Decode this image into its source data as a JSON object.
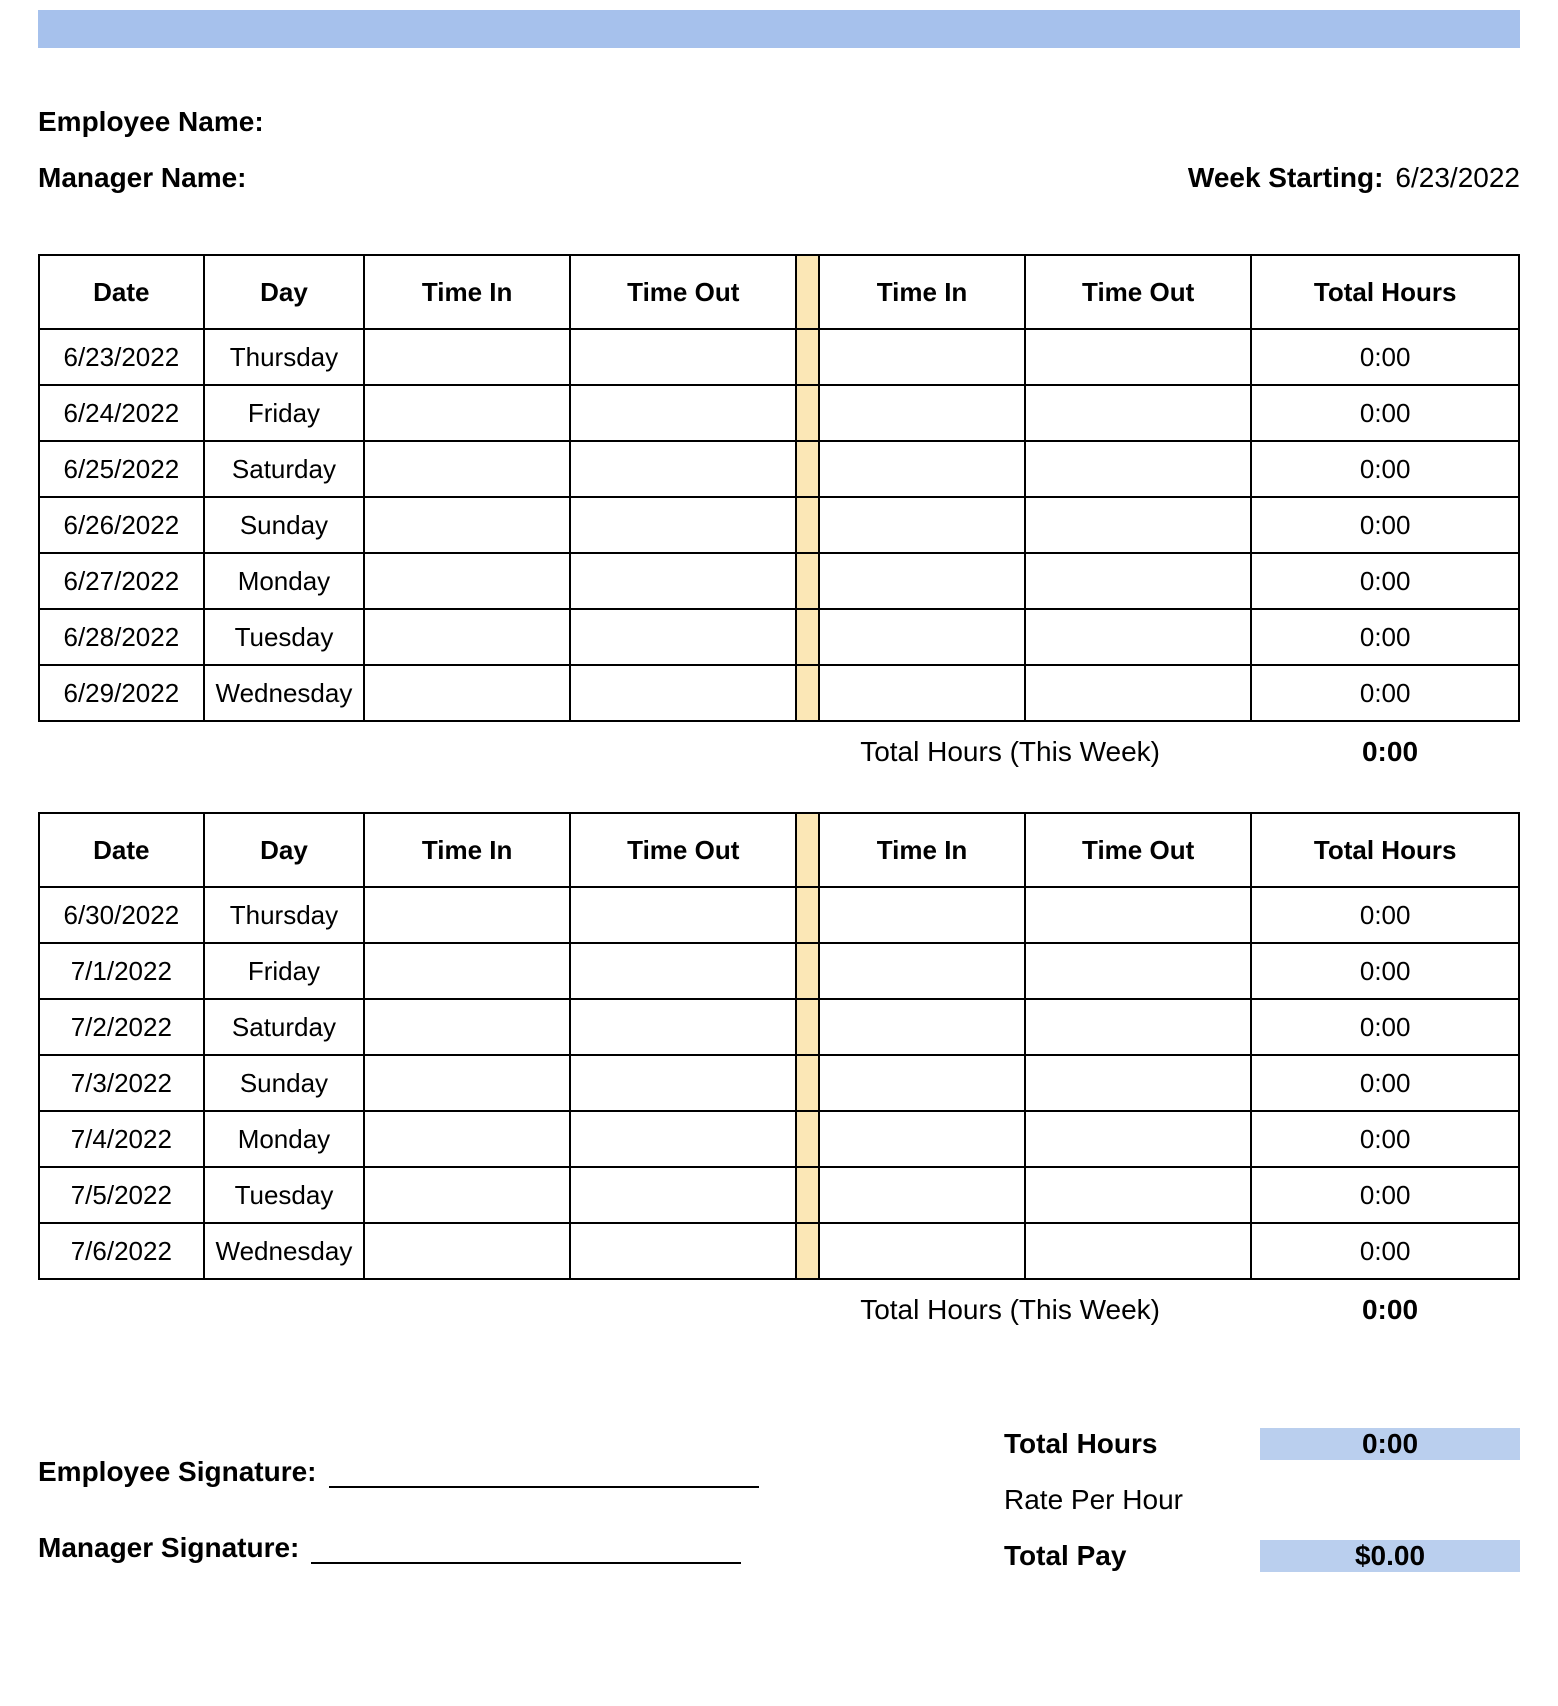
{
  "colors": {
    "header_bar": "#a6c1ec",
    "gap_fill": "#fbe7b6",
    "summary_highlight": "#bacfee",
    "summary_alt": "#fadfbd",
    "border": "#000000",
    "text": "#000000",
    "background": "#ffffff"
  },
  "header": {
    "employee_name_label": "Employee Name:",
    "manager_name_label": "Manager Name:",
    "week_starting_label": "Week Starting:",
    "week_starting_value": "6/23/2022"
  },
  "table_headers": {
    "date": "Date",
    "day": "Day",
    "time_in": "Time In",
    "time_out": "Time Out",
    "time_in2": "Time In",
    "time_out2": "Time Out",
    "total_hours": "Total Hours"
  },
  "week1": {
    "rows": [
      {
        "date": "6/23/2022",
        "day": "Thursday",
        "time_in": "",
        "time_out": "",
        "time_in2": "",
        "time_out2": "",
        "total": "0:00"
      },
      {
        "date": "6/24/2022",
        "day": "Friday",
        "time_in": "",
        "time_out": "",
        "time_in2": "",
        "time_out2": "",
        "total": "0:00"
      },
      {
        "date": "6/25/2022",
        "day": "Saturday",
        "time_in": "",
        "time_out": "",
        "time_in2": "",
        "time_out2": "",
        "total": "0:00"
      },
      {
        "date": "6/26/2022",
        "day": "Sunday",
        "time_in": "",
        "time_out": "",
        "time_in2": "",
        "time_out2": "",
        "total": "0:00"
      },
      {
        "date": "6/27/2022",
        "day": "Monday",
        "time_in": "",
        "time_out": "",
        "time_in2": "",
        "time_out2": "",
        "total": "0:00"
      },
      {
        "date": "6/28/2022",
        "day": "Tuesday",
        "time_in": "",
        "time_out": "",
        "time_in2": "",
        "time_out2": "",
        "total": "0:00"
      },
      {
        "date": "6/29/2022",
        "day": "Wednesday",
        "time_in": "",
        "time_out": "",
        "time_in2": "",
        "time_out2": "",
        "total": "0:00"
      }
    ],
    "total_label": "Total Hours (This Week)",
    "total_value": "0:00"
  },
  "week2": {
    "rows": [
      {
        "date": "6/30/2022",
        "day": "Thursday",
        "time_in": "",
        "time_out": "",
        "time_in2": "",
        "time_out2": "",
        "total": "0:00"
      },
      {
        "date": "7/1/2022",
        "day": "Friday",
        "time_in": "",
        "time_out": "",
        "time_in2": "",
        "time_out2": "",
        "total": "0:00"
      },
      {
        "date": "7/2/2022",
        "day": "Saturday",
        "time_in": "",
        "time_out": "",
        "time_in2": "",
        "time_out2": "",
        "total": "0:00"
      },
      {
        "date": "7/3/2022",
        "day": "Sunday",
        "time_in": "",
        "time_out": "",
        "time_in2": "",
        "time_out2": "",
        "total": "0:00"
      },
      {
        "date": "7/4/2022",
        "day": "Monday",
        "time_in": "",
        "time_out": "",
        "time_in2": "",
        "time_out2": "",
        "total": "0:00"
      },
      {
        "date": "7/5/2022",
        "day": "Tuesday",
        "time_in": "",
        "time_out": "",
        "time_in2": "",
        "time_out2": "",
        "total": "0:00"
      },
      {
        "date": "7/6/2022",
        "day": "Wednesday",
        "time_in": "",
        "time_out": "",
        "time_in2": "",
        "time_out2": "",
        "total": "0:00"
      }
    ],
    "total_label": "Total Hours (This Week)",
    "total_value": "0:00"
  },
  "footer": {
    "employee_signature_label": "Employee Signature:",
    "manager_signature_label": "Manager Signature:",
    "total_hours_label": "Total Hours",
    "total_hours_value": "0:00",
    "rate_per_hour_label": "Rate Per Hour",
    "rate_per_hour_value": "",
    "total_pay_label": "Total Pay",
    "total_pay_value": "$0.00"
  }
}
